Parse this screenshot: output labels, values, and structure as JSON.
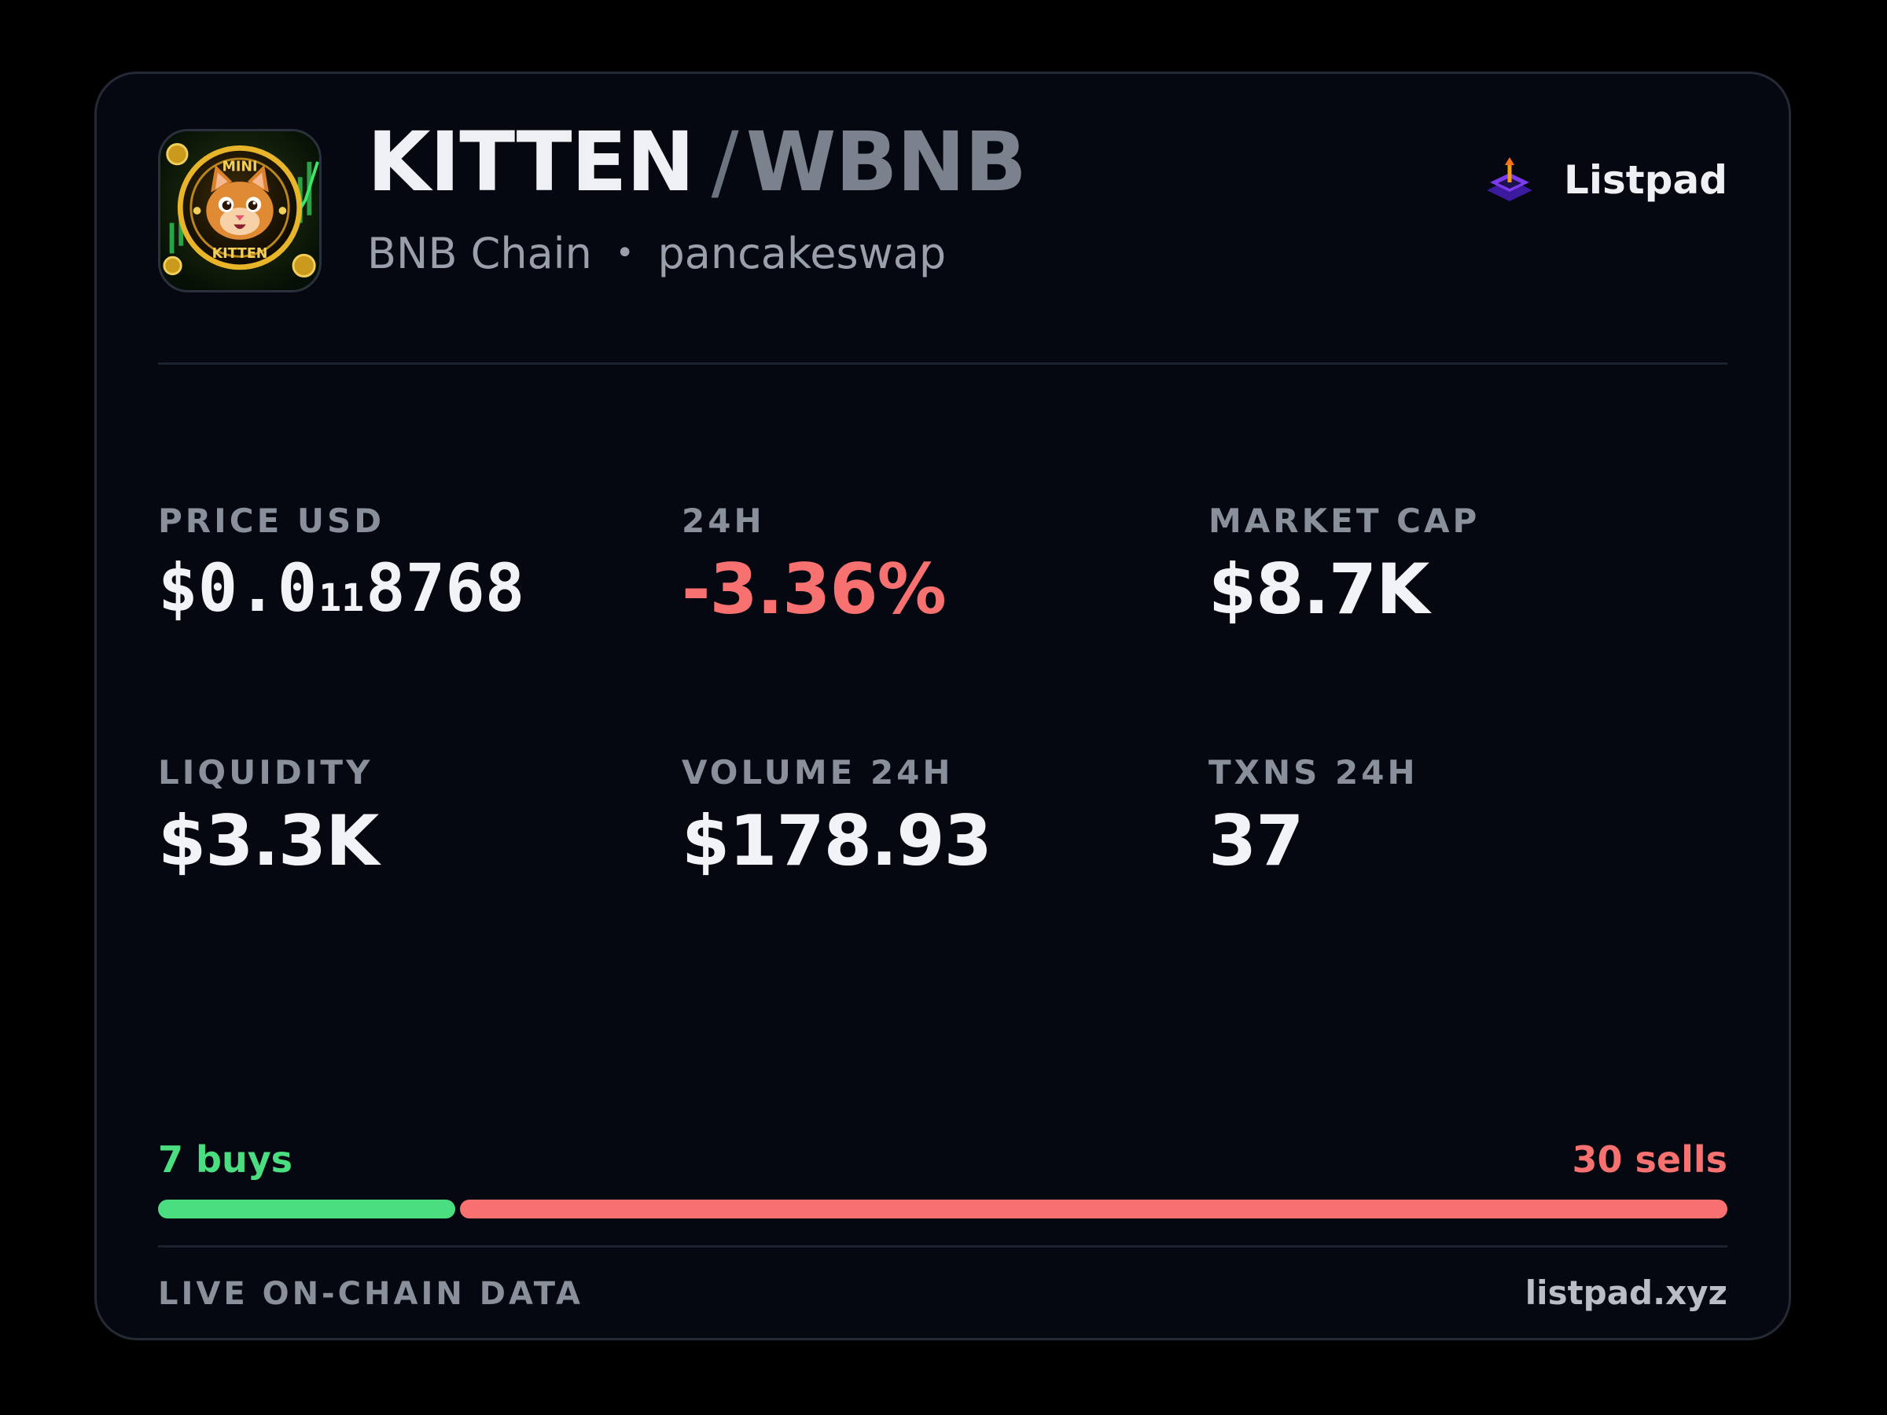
{
  "header": {
    "base_symbol": "KITTEN",
    "separator": "/",
    "quote_symbol": "WBNB",
    "chain": "BNB Chain",
    "dot": "•",
    "dex": "pancakeswap",
    "logo_icon": "mini-kitten-token-icon"
  },
  "brand": {
    "name": "Listpad",
    "icon": "listpad-logo-icon"
  },
  "stats": {
    "price": {
      "label": "PRICE USD",
      "prefix": "$0.0",
      "subscript": "11",
      "digits": "8768"
    },
    "change": {
      "label": "24H",
      "value": "-3.36%",
      "color": "#f87171"
    },
    "market_cap": {
      "label": "MARKET CAP",
      "value": "$8.7K"
    },
    "liquidity": {
      "label": "LIQUIDITY",
      "value": "$3.3K"
    },
    "volume": {
      "label": "VOLUME 24H",
      "value": "$178.93"
    },
    "txns": {
      "label": "TXNS 24H",
      "value": "37"
    }
  },
  "trades": {
    "buys_label": "7 buys",
    "sells_label": "30 sells",
    "buys": 7,
    "sells": 30,
    "buy_color": "#4ade80",
    "sell_color": "#f87171"
  },
  "footer": {
    "left": "LIVE ON-CHAIN DATA",
    "right": "listpad.xyz"
  }
}
